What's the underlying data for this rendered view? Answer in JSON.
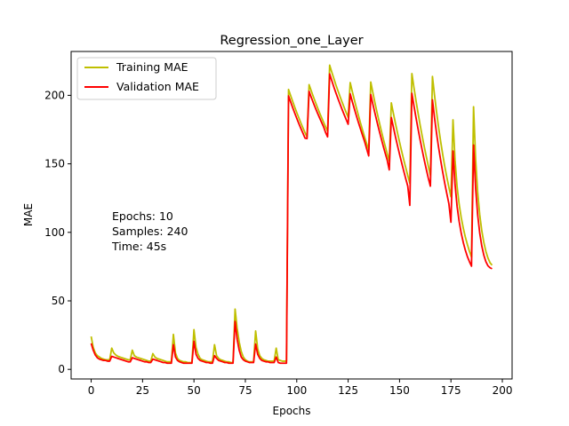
{
  "chart_data": {
    "type": "line",
    "title": "Regression_one_Layer",
    "xlabel": "Epochs",
    "ylabel": "MAE",
    "xlim": [
      -9.75,
      204.75
    ],
    "ylim": [
      -7,
      232
    ],
    "xticks": [
      0,
      25,
      50,
      75,
      100,
      125,
      150,
      175,
      200
    ],
    "yticks": [
      0,
      50,
      100,
      150,
      200
    ],
    "grid": false,
    "legend": "top-left",
    "annotation": [
      "Epochs: 10",
      "Samples: 240",
      "Time: 45s"
    ],
    "series": [
      {
        "name": "Training MAE",
        "color": "#bfbf00",
        "x": [
          0,
          1,
          2,
          3,
          4,
          5,
          6,
          7,
          8,
          9,
          10,
          11,
          12,
          13,
          14,
          15,
          16,
          17,
          18,
          19,
          20,
          21,
          22,
          23,
          24,
          25,
          26,
          27,
          28,
          29,
          30,
          31,
          32,
          33,
          34,
          35,
          36,
          37,
          38,
          39,
          40,
          41,
          42,
          43,
          44,
          45,
          46,
          47,
          48,
          49,
          50,
          51,
          52,
          53,
          54,
          55,
          56,
          57,
          58,
          59,
          60,
          61,
          62,
          63,
          64,
          65,
          66,
          67,
          68,
          69,
          70,
          71,
          72,
          73,
          74,
          75,
          76,
          77,
          78,
          79,
          80,
          81,
          82,
          83,
          84,
          85,
          86,
          87,
          88,
          89,
          90,
          91,
          92,
          93,
          94,
          95,
          96,
          97,
          98,
          99,
          100,
          101,
          102,
          103,
          104,
          105,
          106,
          107,
          108,
          109,
          110,
          111,
          112,
          113,
          114,
          115,
          116,
          117,
          118,
          119,
          120,
          121,
          122,
          123,
          124,
          125,
          126,
          127,
          128,
          129,
          130,
          131,
          132,
          133,
          134,
          135,
          136,
          137,
          138,
          139,
          140,
          141,
          142,
          143,
          144,
          145,
          146,
          147,
          148,
          149,
          150,
          151,
          152,
          153,
          154,
          155,
          156,
          157,
          158,
          159,
          160,
          161,
          162,
          163,
          164,
          165,
          166,
          167,
          168,
          169,
          170,
          171,
          172,
          173,
          174,
          175,
          176,
          177,
          178,
          179,
          180,
          181,
          182,
          183,
          184,
          185,
          186,
          187,
          188,
          189,
          190,
          191,
          192,
          193,
          194,
          195
        ],
        "y": [
          24,
          16,
          12,
          10,
          9,
          8,
          7.5,
          7,
          7,
          7,
          15.5,
          12,
          10.5,
          9.5,
          9,
          8.5,
          8,
          7.5,
          7,
          7,
          14,
          10,
          9,
          8.5,
          8,
          7.5,
          7,
          6.5,
          6,
          6,
          11.5,
          9,
          8,
          7.5,
          7,
          6.5,
          6,
          5.5,
          5.5,
          5.5,
          25.5,
          12,
          8,
          6.5,
          6,
          5.5,
          5.5,
          5,
          5,
          5,
          29,
          16,
          11,
          8,
          7,
          6.5,
          6,
          5.5,
          5.5,
          5.5,
          18,
          10,
          8,
          7,
          6.5,
          6,
          5.5,
          5.5,
          5,
          5,
          44,
          30,
          20,
          13,
          9,
          7,
          6,
          5.5,
          5.5,
          5.5,
          28,
          15,
          10,
          8,
          7,
          6.5,
          6,
          6,
          6,
          6,
          15.5,
          7,
          6.5,
          6,
          6,
          6,
          204.3,
          199.9,
          195.6,
          191.4,
          187.4,
          183.6,
          179.8,
          176.2,
          172.8,
          169.5,
          207.8,
          203.5,
          199.3,
          195.3,
          191.4,
          187.6,
          184,
          180.5,
          177.1,
          173.8,
          222,
          217.1,
          212.5,
          207.8,
          203.5,
          199.3,
          195.3,
          191.4,
          187.6,
          184,
          209.3,
          202.9,
          196.8,
          190.9,
          185.3,
          179.9,
          174.7,
          169.6,
          164.8,
          160.2,
          209.7,
          202.1,
          194.8,
          187.9,
          181.3,
          174.9,
          168.8,
          163,
          157.4,
          152,
          194.5,
          186.9,
          179.6,
          172.6,
          165.9,
          159.4,
          153.2,
          147.3,
          141.5,
          135.8,
          215.9,
          205.7,
          196.1,
          187.1,
          178.5,
          170.4,
          162.7,
          155.4,
          148.4,
          141.5,
          213.8,
          200.2,
          187.9,
          176.6,
          166.3,
          156.8,
          148.1,
          140.2,
          132.9,
          126,
          182.1,
          152.6,
          133.2,
          120.4,
          110.8,
          103.1,
          96.6,
          91.1,
          86.2,
          81.9,
          191.7,
          153.5,
          129.3,
          112.9,
          101.2,
          92.6,
          86.1,
          81.3,
          77.9,
          76
        ]
      },
      {
        "name": "Validation MAE",
        "color": "#ff0000",
        "x": [
          0,
          1,
          2,
          3,
          4,
          5,
          6,
          7,
          8,
          9,
          10,
          11,
          12,
          13,
          14,
          15,
          16,
          17,
          18,
          19,
          20,
          21,
          22,
          23,
          24,
          25,
          26,
          27,
          28,
          29,
          30,
          31,
          32,
          33,
          34,
          35,
          36,
          37,
          38,
          39,
          40,
          41,
          42,
          43,
          44,
          45,
          46,
          47,
          48,
          49,
          50,
          51,
          52,
          53,
          54,
          55,
          56,
          57,
          58,
          59,
          60,
          61,
          62,
          63,
          64,
          65,
          66,
          67,
          68,
          69,
          70,
          71,
          72,
          73,
          74,
          75,
          76,
          77,
          78,
          79,
          80,
          81,
          82,
          83,
          84,
          85,
          86,
          87,
          88,
          89,
          90,
          91,
          92,
          93,
          94,
          95,
          96,
          97,
          98,
          99,
          100,
          101,
          102,
          103,
          104,
          105,
          106,
          107,
          108,
          109,
          110,
          111,
          112,
          113,
          114,
          115,
          116,
          117,
          118,
          119,
          120,
          121,
          122,
          123,
          124,
          125,
          126,
          127,
          128,
          129,
          130,
          131,
          132,
          133,
          134,
          135,
          136,
          137,
          138,
          139,
          140,
          141,
          142,
          143,
          144,
          145,
          146,
          147,
          148,
          149,
          150,
          151,
          152,
          153,
          154,
          155,
          156,
          157,
          158,
          159,
          160,
          161,
          162,
          163,
          164,
          165,
          166,
          167,
          168,
          169,
          170,
          171,
          172,
          173,
          174,
          175,
          176,
          177,
          178,
          179,
          180,
          181,
          182,
          183,
          184,
          185,
          186,
          187,
          188,
          189,
          190,
          191,
          192,
          193,
          194,
          195
        ],
        "y": [
          19,
          14,
          10.5,
          8.5,
          7.5,
          7,
          6.5,
          6.5,
          6,
          6,
          9.5,
          9,
          8.5,
          8,
          7.5,
          7,
          6.5,
          6,
          5.5,
          5.5,
          8.5,
          8,
          7.5,
          7,
          6.5,
          6,
          5.5,
          5.5,
          5,
          5,
          7.5,
          7,
          6.5,
          6,
          5.5,
          5,
          5,
          4.5,
          4.5,
          4.5,
          18,
          9,
          6.5,
          5.5,
          5,
          4.5,
          4.5,
          4.5,
          4.5,
          4.5,
          20.5,
          11,
          8,
          6.5,
          6,
          5.5,
          5,
          5,
          4.5,
          4.5,
          10,
          8,
          6.5,
          6,
          5.5,
          5,
          5,
          4.5,
          4.5,
          4.5,
          35,
          22,
          14,
          9,
          7,
          6,
          5.5,
          5,
          5,
          5,
          18.5,
          11,
          8,
          6.5,
          6,
          5.5,
          5.5,
          5,
          5,
          5,
          9,
          5,
          4.5,
          4.5,
          4.5,
          4.5,
          199.6,
          195.3,
          191.1,
          187.1,
          183.2,
          179.4,
          175.8,
          172.4,
          168.8,
          168.4,
          202.9,
          198.8,
          194.8,
          191,
          187.4,
          183.9,
          180.5,
          177.2,
          173,
          169.7,
          215.6,
          210.9,
          206.3,
          201.9,
          197.8,
          193.8,
          189.9,
          186.1,
          182.5,
          178.9,
          201.1,
          195.5,
          190.2,
          185.1,
          180.2,
          175.5,
          170.8,
          166.3,
          161,
          155.8,
          200.6,
          193.7,
          187.2,
          180.9,
          174.8,
          169,
          163.3,
          157.9,
          152.7,
          145.6,
          183.8,
          176.8,
          169.9,
          163.3,
          157,
          150.9,
          145,
          139.2,
          133.7,
          119.7,
          201.5,
          192.4,
          183.7,
          175.5,
          167.6,
          160.1,
          152.9,
          146.1,
          139.5,
          133.7,
          196.7,
          183.8,
          172.3,
          162,
          152.6,
          143.9,
          135.8,
          128.2,
          120.9,
          107.4,
          159.4,
          135,
          118.9,
          107.9,
          99.4,
          92.6,
          87,
          82.3,
          78.6,
          75.3,
          163.7,
          132.4,
          112.8,
          99.5,
          90.1,
          83.3,
          78.6,
          75.6,
          74.2,
          73.4
        ]
      }
    ]
  }
}
